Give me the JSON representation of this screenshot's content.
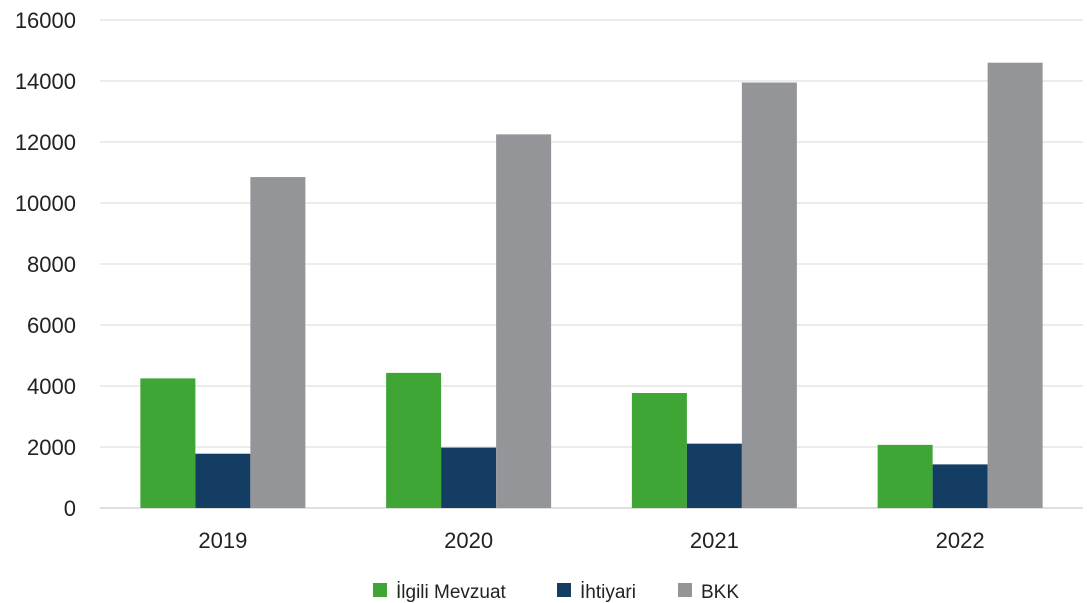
{
  "chart_data": {
    "type": "bar",
    "title": "",
    "xlabel": "",
    "ylabel": "",
    "categories": [
      "2019",
      "2020",
      "2021",
      "2022"
    ],
    "series": [
      {
        "name": "İlgili Mevzuat",
        "color": "#3fa535",
        "values": [
          4250,
          4430,
          3770,
          2070
        ]
      },
      {
        "name": "İhtiyari",
        "color": "#143d63",
        "values": [
          1780,
          1980,
          2110,
          1430
        ]
      },
      {
        "name": "BKK",
        "color": "#939598",
        "values": [
          10850,
          12250,
          13950,
          14600
        ]
      }
    ],
    "ylim": [
      0,
      16000
    ],
    "yticks": [
      "0",
      "2000",
      "4000",
      "6000",
      "8000",
      "10000",
      "12000",
      "14000",
      "16000"
    ],
    "grid": true,
    "legend_position": "bottom"
  }
}
